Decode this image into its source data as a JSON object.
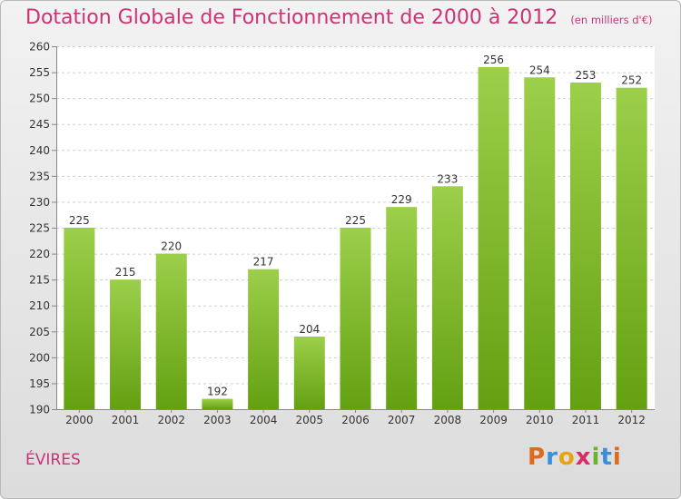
{
  "title": "Dotation Globale de Fonctionnement de 2000 à 2012",
  "unit": "(en milliers d'€)",
  "place": "ÉVIRES",
  "brand": "Proxiti",
  "colors": {
    "bar_light": "#9ccf4a",
    "bar_dark": "#64a012",
    "title": "#cc3377",
    "brand_letters": [
      "#e06a1b",
      "#3a8fd6",
      "#e8a415",
      "#d92b6b",
      "#6ab42d",
      "#3a8fd6",
      "#e06a1b"
    ]
  },
  "chart_data": {
    "type": "bar",
    "categories": [
      "2000",
      "2001",
      "2002",
      "2003",
      "2004",
      "2005",
      "2006",
      "2007",
      "2008",
      "2009",
      "2010",
      "2011",
      "2012"
    ],
    "values": [
      225,
      215,
      220,
      192,
      217,
      204,
      225,
      229,
      233,
      256,
      254,
      253,
      252
    ],
    "ylim": [
      190,
      260
    ],
    "yticks": [
      190,
      195,
      200,
      205,
      210,
      215,
      220,
      225,
      230,
      235,
      240,
      245,
      250,
      255,
      260
    ],
    "grid": true,
    "title": "Dotation Globale de Fonctionnement de 2000 à 2012",
    "xlabel": "",
    "ylabel": ""
  }
}
